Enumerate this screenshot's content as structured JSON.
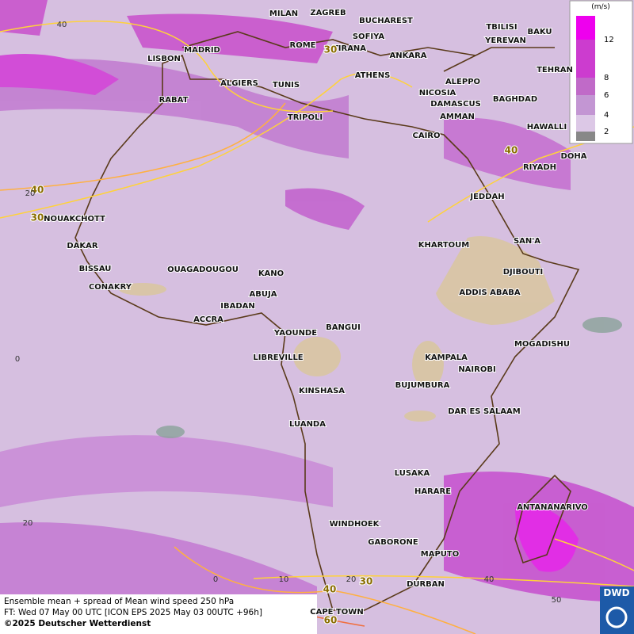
{
  "legend": {
    "unit": "(m/s)",
    "levels": [
      12,
      8,
      6,
      4,
      2
    ]
  },
  "cities": [
    "MILAN",
    "ZAGREB",
    "BUCHAREST",
    "TBILISI",
    "BAKU",
    "SOFIYA",
    "YEREVAN",
    "ROME",
    "TIRANA",
    "MADRID",
    "ANKARA",
    "LISBON",
    "TEHRAN",
    "ATHENS",
    "ALGIERS",
    "TUNIS",
    "ALEPPO",
    "NICOSIA",
    "BAGHDAD",
    "RABAT",
    "DAMASCUS",
    "AMMAN",
    "TRIPOLI",
    "HAWALLI",
    "CAIRO",
    "DOHA",
    "RIYADH",
    "JEDDAH",
    "NOUAKCHOTT",
    "KHARTOUM",
    "SAN'A",
    "DAKAR",
    "BISSAU",
    "DJIBOUTI",
    "OUAGADOUGOU",
    "KANO",
    "CONAKRY",
    "ABUJA",
    "ADDIS ABABA",
    "IBADAN",
    "ACCRA",
    "BANGUI",
    "YAOUNDE",
    "MOGADISHU",
    "LIBREVILLE",
    "KAMPALA",
    "NAIROBI",
    "BUJUMBURA",
    "KINSHASA",
    "DAR ES SALAAM",
    "LUANDA",
    "LUSAKA",
    "HARARE",
    "ANTANANARIVO",
    "WINDHOEK",
    "GABORONE",
    "MAPUTO",
    "DURBAN",
    "CAPE TOWN"
  ],
  "contour_labels": [
    30,
    40,
    30,
    40,
    30,
    40,
    60
  ],
  "latitude_labels": [
    40,
    20,
    0,
    20
  ],
  "longitude_labels": [
    0,
    10,
    20,
    40,
    50
  ],
  "footer": [
    "Ensemble mean + spread of Mean wind speed 250 hPa",
    "FT: Wed 07 May 00 UTC [ICON EPS 2025 May 03 00UTC +96h]",
    "©2025 Deutscher Wetterdienst"
  ],
  "logo": "DWD"
}
